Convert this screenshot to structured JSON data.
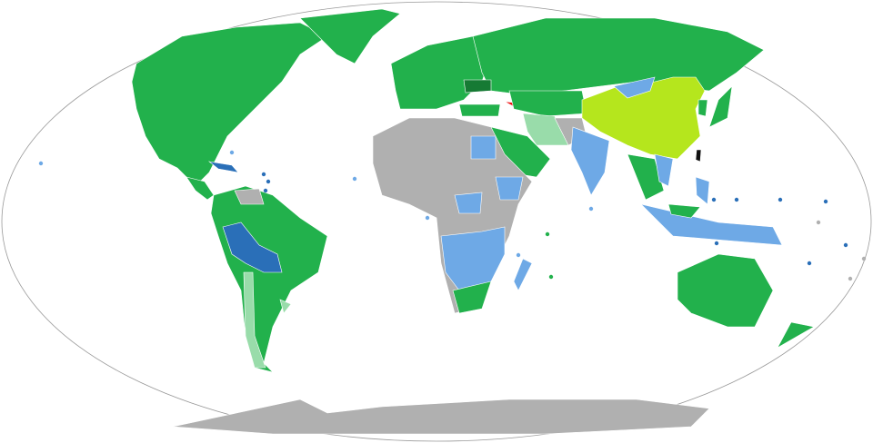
{
  "map": {
    "projection": "Robinson",
    "colors": {
      "background": "#ffffff",
      "outline": "#999999",
      "green": "#22b14c",
      "dark_green": "#167a34",
      "light_green": "#99dcaa",
      "yellow_green": "#b5e61d",
      "light_blue": "#6ea9e6",
      "dark_blue": "#2a6fb8",
      "gray": "#b0b0b0",
      "red": "#ee1111",
      "black": "#111111"
    }
  }
}
